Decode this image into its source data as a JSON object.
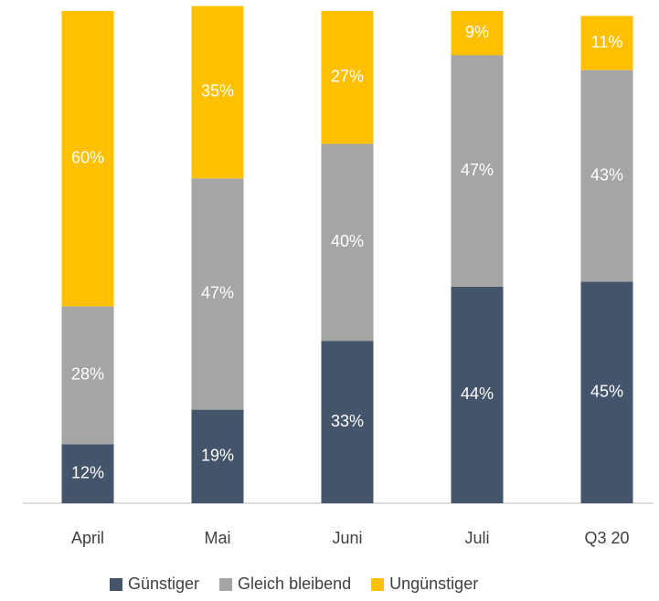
{
  "chart_data": {
    "type": "bar",
    "stacked": true,
    "categories": [
      "April",
      "Mai",
      "Juni",
      "Juli",
      "Q3 20"
    ],
    "ylim": [
      0,
      100
    ],
    "legend": "bottom",
    "series": [
      {
        "name": "Günstiger",
        "color": "#44546a",
        "values": [
          12,
          19,
          33,
          44,
          45
        ],
        "value_labels": [
          "12%",
          "19%",
          "33%",
          "44%",
          "45%"
        ]
      },
      {
        "name": "Gleich bleibend",
        "color": "#a5a5a5",
        "values": [
          28,
          47,
          40,
          47,
          43
        ],
        "value_labels": [
          "28%",
          "47%",
          "40%",
          "47%",
          "43%"
        ]
      },
      {
        "name": "Ungünstiger",
        "color": "#ffc000",
        "values": [
          60,
          35,
          27,
          9,
          11
        ],
        "value_labels": [
          "60%",
          "35%",
          "27%",
          "9%",
          "11%"
        ]
      }
    ]
  }
}
